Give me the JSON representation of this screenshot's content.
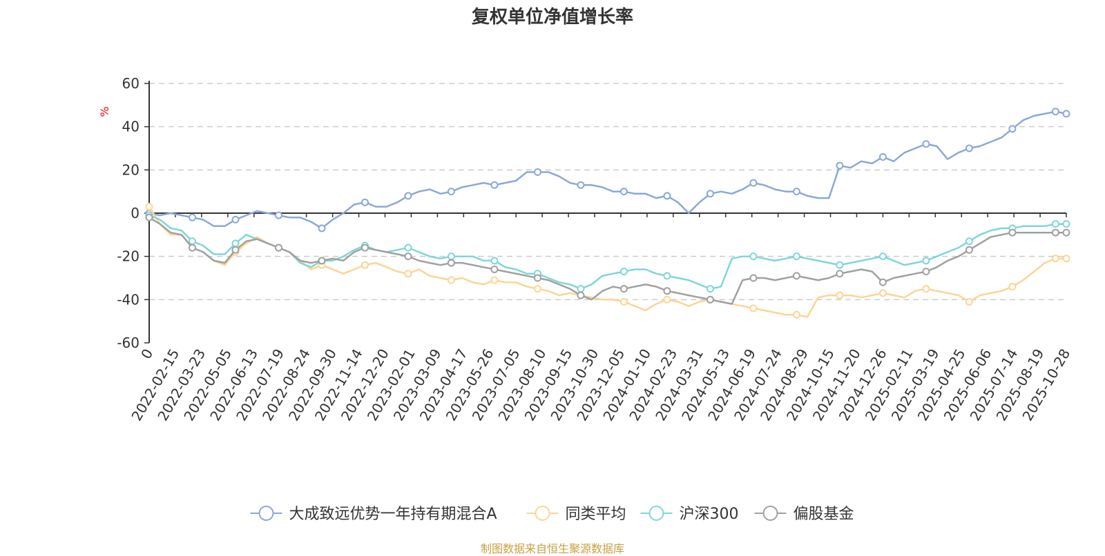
{
  "chart_data": {
    "type": "line",
    "title": "复权单位净值增长率",
    "ylabel": "%",
    "xlabel": "",
    "ylim": [
      -60,
      60
    ],
    "yticks": [
      60,
      40,
      20,
      0,
      -20,
      -40,
      -60
    ],
    "ytick_labels": [
      "60",
      "40",
      "20",
      "0",
      "-20",
      "-40",
      "-60"
    ],
    "grid": true,
    "legend_position": "bottom-center",
    "x_tick_labels": [
      "0",
      "2022-02-15",
      "2022-03-23",
      "2022-05-05",
      "2022-06-13",
      "2022-07-19",
      "2022-08-24",
      "2022-09-30",
      "2022-11-14",
      "2022-12-20",
      "2023-02-01",
      "2023-03-09",
      "2023-04-17",
      "2023-05-26",
      "2023-07-05",
      "2023-08-10",
      "2023-09-15",
      "2023-10-30",
      "2023-12-05",
      "2024-01-10",
      "2024-02-23",
      "2024-03-31",
      "2024-05-13",
      "2024-06-19",
      "2024-07-24",
      "2024-08-29",
      "2024-10-15",
      "2024-11-20",
      "2024-12-26",
      "2025-02-11",
      "2025-03-19",
      "2025-04-25",
      "2025-06-06",
      "2025-07-14",
      "2025-08-19",
      "2025-10-28"
    ],
    "series": [
      {
        "name": "大成致远优势一年持有期混合A",
        "color": "#8ba7d8",
        "values": [
          0,
          -1,
          0,
          -1,
          -2,
          -3,
          -6,
          -6,
          -3,
          -1,
          1,
          0,
          -1,
          -2,
          -2,
          -4,
          -7,
          -3,
          0,
          4,
          5,
          3,
          3,
          5,
          8,
          10,
          11,
          9,
          10,
          12,
          13,
          14,
          13,
          14,
          15,
          19,
          19,
          19,
          17,
          14,
          13,
          13,
          12,
          10,
          10,
          9,
          9,
          7,
          8,
          5,
          0,
          5,
          9,
          10,
          9,
          11,
          14,
          13,
          11,
          10,
          10,
          8,
          7,
          7,
          22,
          21,
          24,
          23,
          26,
          24,
          28,
          30,
          32,
          31,
          25,
          28,
          30,
          31,
          33,
          35,
          39,
          43,
          45,
          46,
          47,
          46
        ]
      },
      {
        "name": "同类平均",
        "color": "#fdd494",
        "values": [
          3,
          -5,
          -10,
          -10,
          -16,
          -18,
          -22,
          -24,
          -18,
          -14,
          -11,
          -14,
          -16,
          -18,
          -22,
          -26,
          -24,
          -26,
          -28,
          -26,
          -24,
          -23,
          -25,
          -27,
          -28,
          -26,
          -29,
          -30,
          -31,
          -30,
          -32,
          -33,
          -31,
          -32,
          -32,
          -34,
          -35,
          -36,
          -38,
          -37,
          -38,
          -39,
          -40,
          -40,
          -41,
          -43,
          -45,
          -42,
          -40,
          -41,
          -43,
          -41,
          -40,
          -41,
          -42,
          -43,
          -44,
          -45,
          -46,
          -47,
          -47,
          -48,
          -39,
          -38,
          -38,
          -38,
          -39,
          -38,
          -37,
          -38,
          -39,
          -36,
          -35,
          -36,
          -37,
          -38,
          -41,
          -38,
          -37,
          -36,
          -34,
          -31,
          -27,
          -23,
          -21,
          -21
        ]
      },
      {
        "name": "沪深300",
        "color": "#7fd6d6",
        "values": [
          -1,
          -3,
          -7,
          -8,
          -13,
          -15,
          -19,
          -19,
          -14,
          -10,
          -12,
          -14,
          -16,
          -18,
          -23,
          -25,
          -22,
          -22,
          -20,
          -17,
          -15,
          -17,
          -18,
          -17,
          -16,
          -18,
          -20,
          -21,
          -20,
          -20,
          -20,
          -22,
          -22,
          -25,
          -26,
          -28,
          -28,
          -30,
          -32,
          -33,
          -35,
          -33,
          -29,
          -28,
          -27,
          -26,
          -26,
          -28,
          -29,
          -30,
          -31,
          -33,
          -35,
          -34,
          -21,
          -20,
          -20,
          -21,
          -22,
          -21,
          -20,
          -21,
          -22,
          -23,
          -24,
          -23,
          -22,
          -21,
          -20,
          -22,
          -24,
          -23,
          -22,
          -20,
          -18,
          -16,
          -13,
          -10,
          -8,
          -7,
          -7,
          -6,
          -6,
          -6,
          -5,
          -5
        ]
      },
      {
        "name": "偏股基金",
        "color": "#a0a0a0",
        "values": [
          -2,
          -5,
          -9,
          -10,
          -16,
          -18,
          -22,
          -23,
          -17,
          -13,
          -12,
          -14,
          -16,
          -18,
          -22,
          -23,
          -22,
          -21,
          -22,
          -18,
          -16,
          -17,
          -18,
          -19,
          -20,
          -22,
          -23,
          -24,
          -23,
          -23,
          -24,
          -25,
          -26,
          -27,
          -28,
          -29,
          -30,
          -31,
          -33,
          -35,
          -38,
          -40,
          -36,
          -34,
          -35,
          -34,
          -33,
          -34,
          -36,
          -37,
          -38,
          -39,
          -40,
          -41,
          -42,
          -31,
          -30,
          -30,
          -31,
          -30,
          -29,
          -30,
          -31,
          -30,
          -28,
          -27,
          -26,
          -27,
          -32,
          -30,
          -29,
          -28,
          -27,
          -25,
          -22,
          -20,
          -17,
          -14,
          -11,
          -10,
          -9,
          -9,
          -9,
          -9,
          -9,
          -9
        ]
      }
    ],
    "source_note": "制图数据来自恒生聚源数据库"
  }
}
